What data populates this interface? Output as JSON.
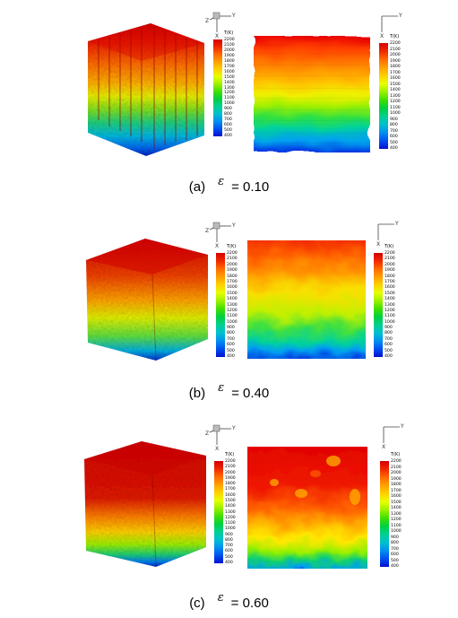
{
  "colorbar": {
    "title": "T(K)",
    "ticks": [
      "2200",
      "2100",
      "2000",
      "1900",
      "1800",
      "1700",
      "1600",
      "1500",
      "1400",
      "1300",
      "1200",
      "1100",
      "1000",
      "900",
      "800",
      "700",
      "600",
      "500",
      "400"
    ]
  },
  "axis_icon": {
    "x_label": "X",
    "y_label": "Y",
    "z_label": "Z"
  },
  "panels": [
    {
      "label": "(a)",
      "symbol": "ε",
      "equals_value": "= 0.10"
    },
    {
      "label": "(b)",
      "symbol": "ε",
      "equals_value": "= 0.40"
    },
    {
      "label": "(c)",
      "symbol": "ε",
      "equals_value": "= 0.60"
    }
  ]
}
